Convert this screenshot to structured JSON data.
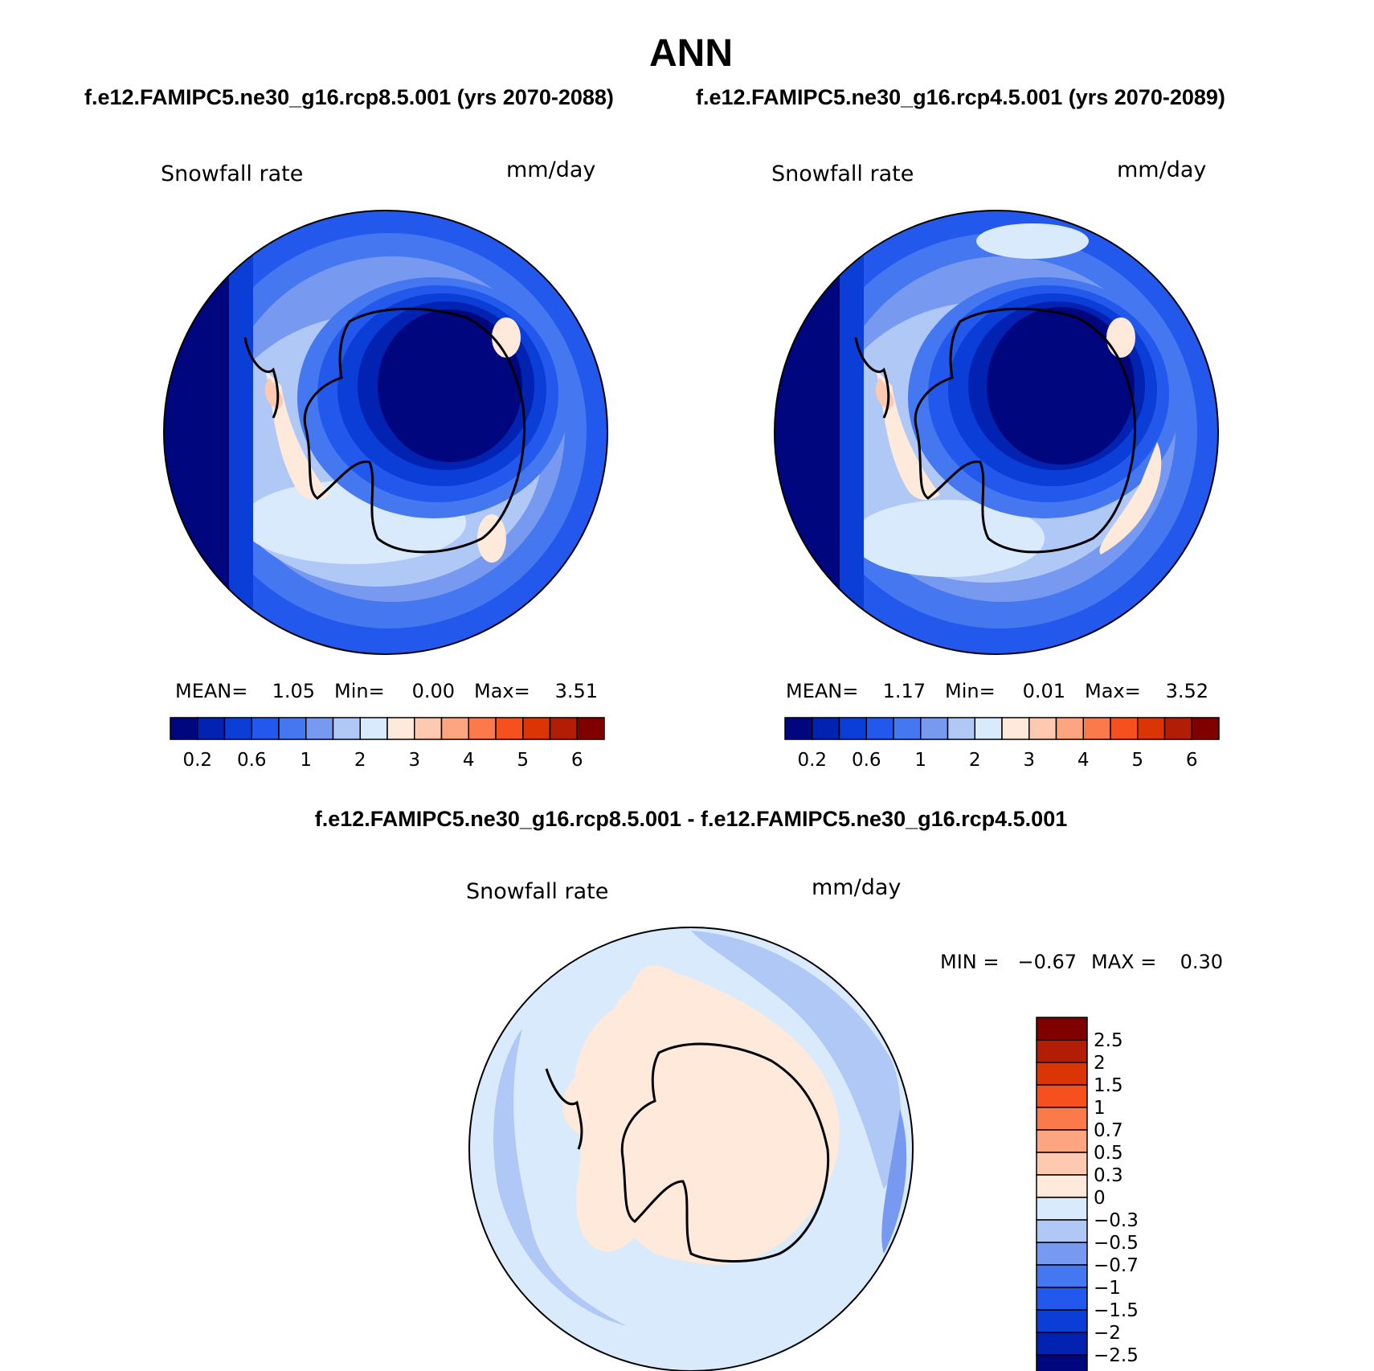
{
  "title": "ANN",
  "subtitle_left": "f.e12.FAMIPC5.ne30_g16.rcp8.5.001 (yrs 2070-2088)",
  "subtitle_right": "f.e12.FAMIPC5.ne30_g16.rcp4.5.001 (yrs 2070-2089)",
  "diff_title": "f.e12.FAMIPC5.ne30_g16.rcp8.5.001 - f.e12.FAMIPC5.ne30_g16.rcp4.5.001",
  "panels": [
    {
      "variable": "Snowfall rate",
      "units": "mm/day",
      "stats": {
        "mean_label": "MEAN=",
        "mean": "1.05",
        "min_label": "Min=",
        "min": "0.00",
        "max_label": "Max=",
        "max": "3.51"
      }
    },
    {
      "variable": "Snowfall rate",
      "units": "mm/day",
      "stats": {
        "mean_label": "MEAN=",
        "mean": "1.17",
        "min_label": "Min=",
        "min": "0.01",
        "max_label": "Max=",
        "max": "3.52"
      }
    }
  ],
  "diff_panel": {
    "variable": "Snowfall rate",
    "units": "mm/day",
    "min_label": "MIN =",
    "min": "−0.67",
    "max_label": "MAX =",
    "max": "0.30"
  },
  "colorbar_top": {
    "colors": [
      "#00077e",
      "#0222b2",
      "#0a3ed6",
      "#2259ec",
      "#4477f0",
      "#7899f0",
      "#b0c8f6",
      "#d9eafc",
      "#fee9db",
      "#fdc9b0",
      "#fca580",
      "#fb7a4b",
      "#f7501f",
      "#dc3505",
      "#b21d05",
      "#800000"
    ],
    "tick_labels": [
      "0.2",
      "0.6",
      "1",
      "2",
      "3",
      "4",
      "5",
      "6"
    ]
  },
  "colorbar_diff": {
    "colors_top_to_bottom": [
      "#800000",
      "#b21d05",
      "#dc3505",
      "#f7501f",
      "#fb7a4b",
      "#fca580",
      "#fdc9b0",
      "#fee9db",
      "#d9eafc",
      "#b0c8f6",
      "#7899f0",
      "#4477f0",
      "#2259ec",
      "#0a3ed6",
      "#0222b2",
      "#00077e"
    ],
    "tick_labels": [
      "2.5",
      "2",
      "1.5",
      "1",
      "0.7",
      "0.5",
      "0.3",
      "0",
      "−0.3",
      "−0.5",
      "−0.7",
      "−1",
      "−1.5",
      "−2",
      "−2.5"
    ]
  },
  "map_colors": {
    "c0": "#00077e",
    "c1": "#0222b2",
    "c2": "#0a3ed6",
    "c3": "#2259ec",
    "c4": "#4477f0",
    "c5": "#7899f0",
    "c6": "#b0c8f6",
    "c7": "#d9eafc",
    "c8": "#fee9db",
    "c9": "#fdc9b0"
  }
}
